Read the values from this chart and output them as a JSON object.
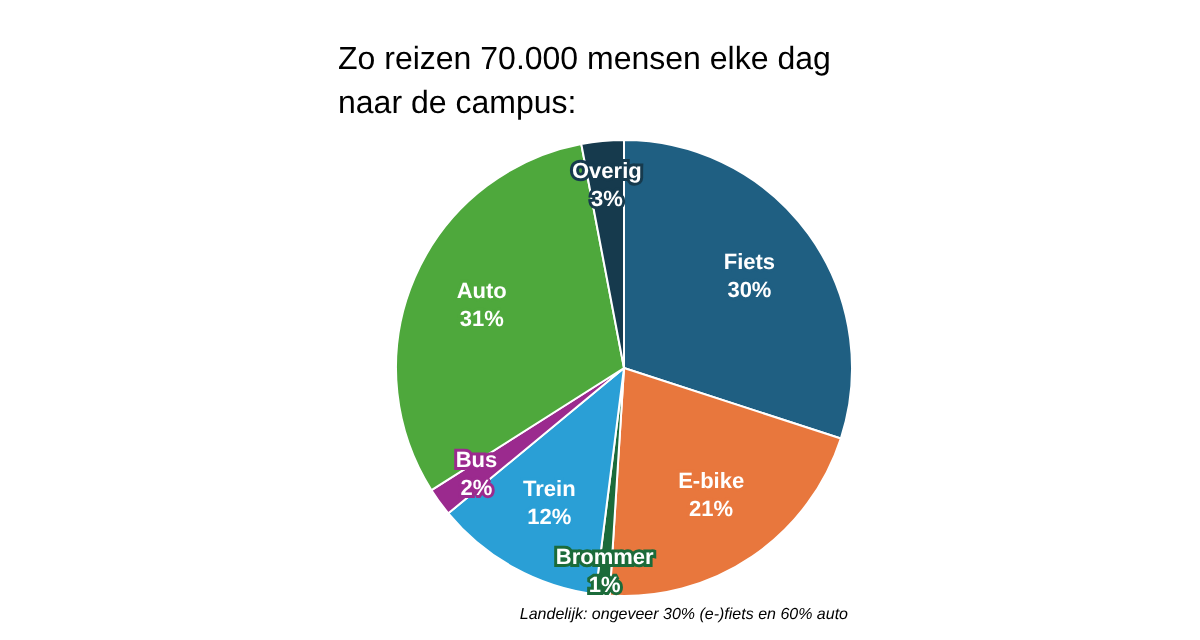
{
  "chart_data": {
    "type": "pie",
    "title": "Zo reizen 70.000 mensen elke dag naar de campus:",
    "categories": [
      "Fiets",
      "E-bike",
      "Brommer",
      "Trein",
      "Bus",
      "Auto",
      "Overig"
    ],
    "values": [
      30,
      21,
      1,
      12,
      2,
      31,
      3
    ],
    "value_labels": [
      "30%",
      "21%",
      "1%",
      "12%",
      "2%",
      "31%",
      "3%"
    ],
    "colors": [
      "#1f5f82",
      "#e8773d",
      "#1b6b3a",
      "#2a9fd6",
      "#9b2a8e",
      "#4ea83c",
      "#163a4d"
    ],
    "legend": false,
    "annotations": [
      "Landelijk: ongeveer 30% (e-)fiets en 60% auto"
    ]
  }
}
